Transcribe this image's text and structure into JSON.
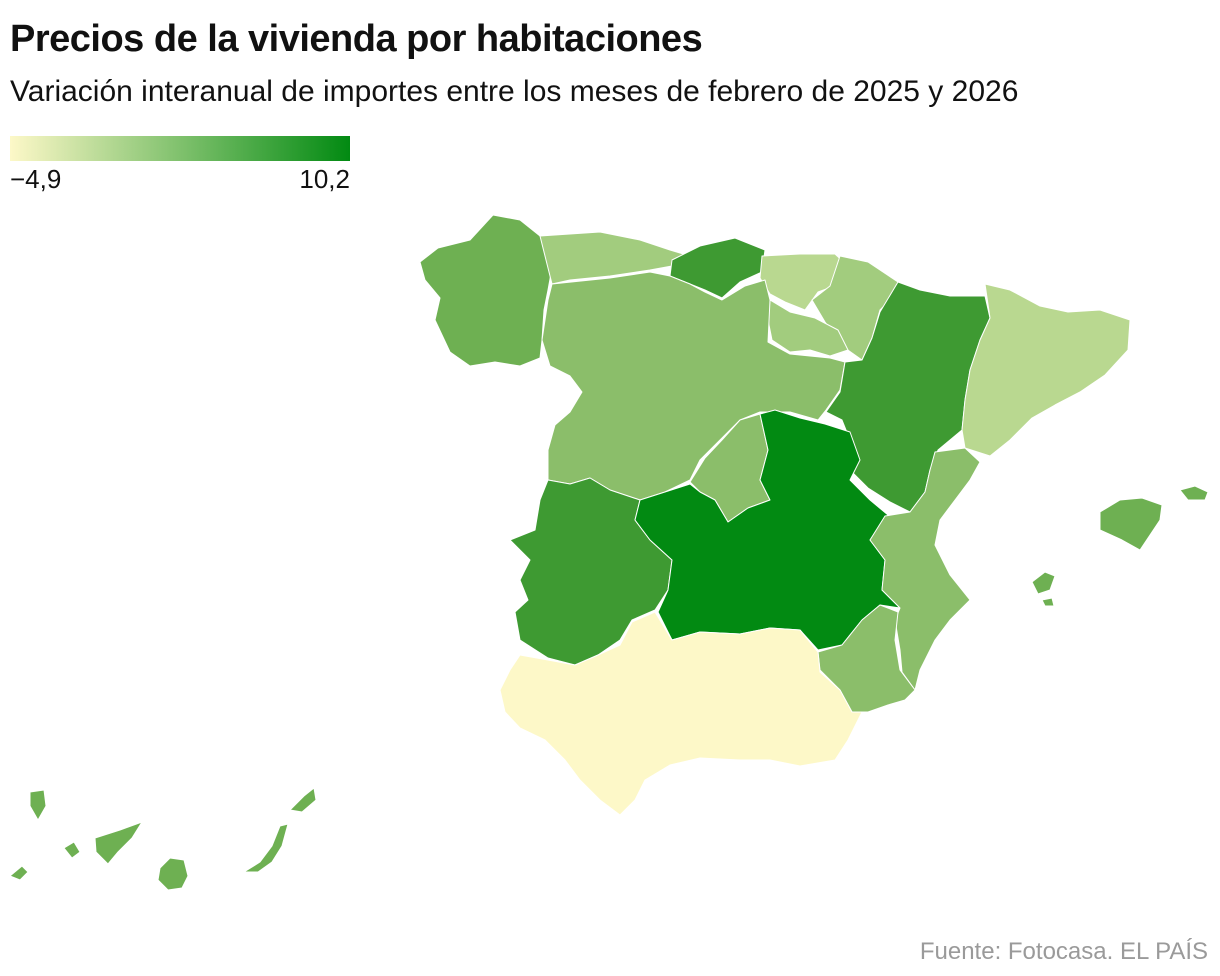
{
  "title": "Precios de la vivienda por habitaciones",
  "subtitle": "Variación interanual de importes entre los meses de febrero de 2025 y 2026",
  "legend": {
    "min_label": "−4,9",
    "max_label": "10,2",
    "color_min": "#fdf8c8",
    "color_max": "#028a12"
  },
  "source": "Fuente: Fotocasa. EL PAÍS",
  "colors": {
    "andalucia": "#fdf8c8",
    "cataluna": "#b9d890",
    "pais_vasco": "#b9d890",
    "asturias": "#a2cc7e",
    "navarra": "#a2cc7e",
    "la_rioja": "#a2cc7e",
    "castilla_y_leon": "#8bbe6a",
    "madrid": "#8bbe6a",
    "valencia": "#8bbe6a",
    "murcia": "#8bbe6a",
    "galicia": "#6eb052",
    "baleares": "#6eb052",
    "canarias": "#6eb052",
    "cantabria": "#3e9a32",
    "aragon": "#3e9a32",
    "extremadura": "#3e9a32",
    "castilla_la_mancha": "#028a12"
  }
}
